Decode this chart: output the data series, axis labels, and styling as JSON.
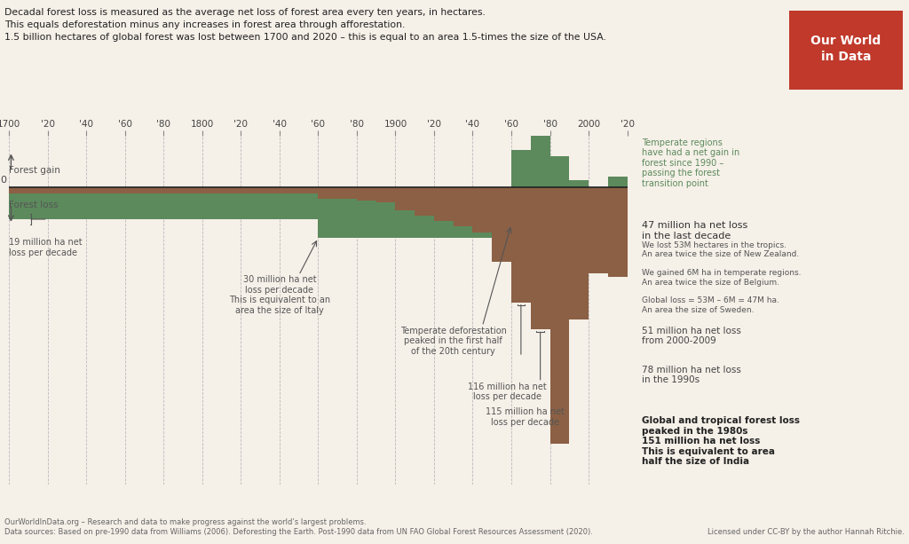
{
  "background_color": "#f5f0e8",
  "tropical_color": "#8B6044",
  "temperate_color": "#5C8A5C",
  "zero_line_color": "#222222",
  "title_text": "Decadal forest loss is measured as the average net loss of forest area every ten years, in hectares.\nThis equals deforestation minus any increases in forest area through afforestation.\n1.5 billion hectares of global forest was lost between 1700 and 2020 – this is equal to an area 1.5-times the size of the USA.",
  "decades": [
    1700,
    1710,
    1720,
    1730,
    1740,
    1750,
    1760,
    1770,
    1780,
    1790,
    1800,
    1810,
    1820,
    1830,
    1840,
    1850,
    1860,
    1870,
    1880,
    1890,
    1900,
    1910,
    1920,
    1930,
    1940,
    1950,
    1960,
    1970,
    1980,
    1990,
    2000,
    2010
  ],
  "tropical_loss": [
    4,
    4,
    4,
    4,
    4,
    4,
    4,
    4,
    4,
    4,
    4,
    4,
    4,
    4,
    4,
    4,
    7,
    7,
    8,
    9,
    14,
    17,
    20,
    23,
    27,
    44,
    68,
    84,
    151,
    78,
    51,
    53
  ],
  "temperate_loss": [
    15,
    15,
    15,
    15,
    15,
    15,
    15,
    15,
    15,
    15,
    15,
    15,
    15,
    15,
    15,
    15,
    23,
    23,
    22,
    21,
    16,
    13,
    10,
    7,
    3,
    0,
    -22,
    -30,
    -18,
    -4,
    0,
    -6
  ],
  "tick_positions": [
    1700,
    1720,
    1740,
    1760,
    1780,
    1800,
    1820,
    1840,
    1860,
    1880,
    1900,
    1920,
    1940,
    1960,
    1980,
    2000,
    2020
  ],
  "tick_labels": [
    "1700",
    "'20",
    "'40",
    "'60",
    "'80",
    "1800",
    "'20",
    "'40",
    "'60",
    "'80",
    "1900",
    "'20",
    "'40",
    "'60",
    "'80",
    "2000",
    "'20"
  ],
  "ymin": -175,
  "ymax": 30,
  "xlim_left": 1700,
  "xlim_right": 2020,
  "owid_red": "#c0392b",
  "footer": "OurWorldInData.org – Research and data to make progress against the world’s largest problems.\nData sources: Based on pre-1990 data from Williams (2006). Deforesting the Earth. Post-1990 data from UN FAO Global Forest Resources Assessment (2020).",
  "license": "Licensed under CC-BY by the author Hannah Ritchie."
}
